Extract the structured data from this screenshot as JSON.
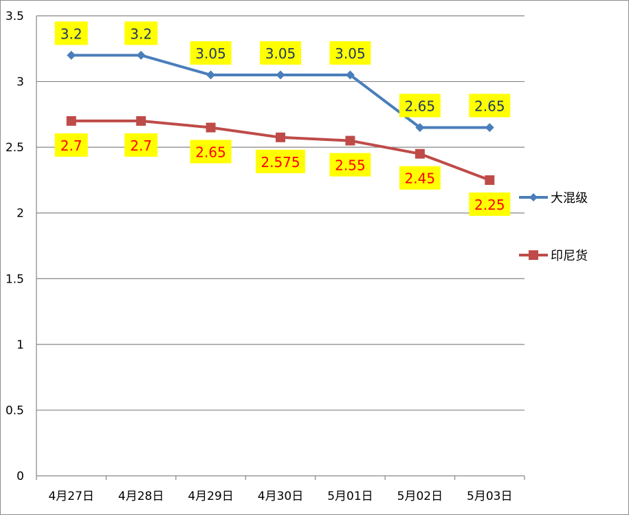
{
  "chart_data": {
    "type": "line",
    "categories": [
      "4月27日",
      "4月28日",
      "4月29日",
      "4月30日",
      "5月01日",
      "5月02日",
      "5月03日"
    ],
    "series": [
      {
        "name": "大混级",
        "values": [
          3.2,
          3.2,
          3.05,
          3.05,
          3.05,
          2.65,
          2.65
        ],
        "labels": [
          "3.2",
          "3.2",
          "3.05",
          "3.05",
          "3.05",
          "2.65",
          "2.65"
        ],
        "color": "#4a7ebb",
        "marker": "diamond",
        "label_color": "#1f3864",
        "label_position": "above"
      },
      {
        "name": "印尼货",
        "values": [
          2.7,
          2.7,
          2.65,
          2.575,
          2.55,
          2.45,
          2.25
        ],
        "labels": [
          "2.7",
          "2.7",
          "2.65",
          "2.575",
          "2.55",
          "2.45",
          "2.25"
        ],
        "color": "#be4b48",
        "marker": "square",
        "label_color": "#ff0000",
        "label_position": "below"
      }
    ],
    "yticks": [
      "0",
      "0.5",
      "1",
      "1.5",
      "2",
      "2.5",
      "3",
      "3.5"
    ],
    "ylim": [
      0,
      3.5
    ],
    "title": "",
    "xlabel": "",
    "ylabel": "",
    "grid": true,
    "legend_position": "right",
    "label_background": "#ffff00"
  }
}
